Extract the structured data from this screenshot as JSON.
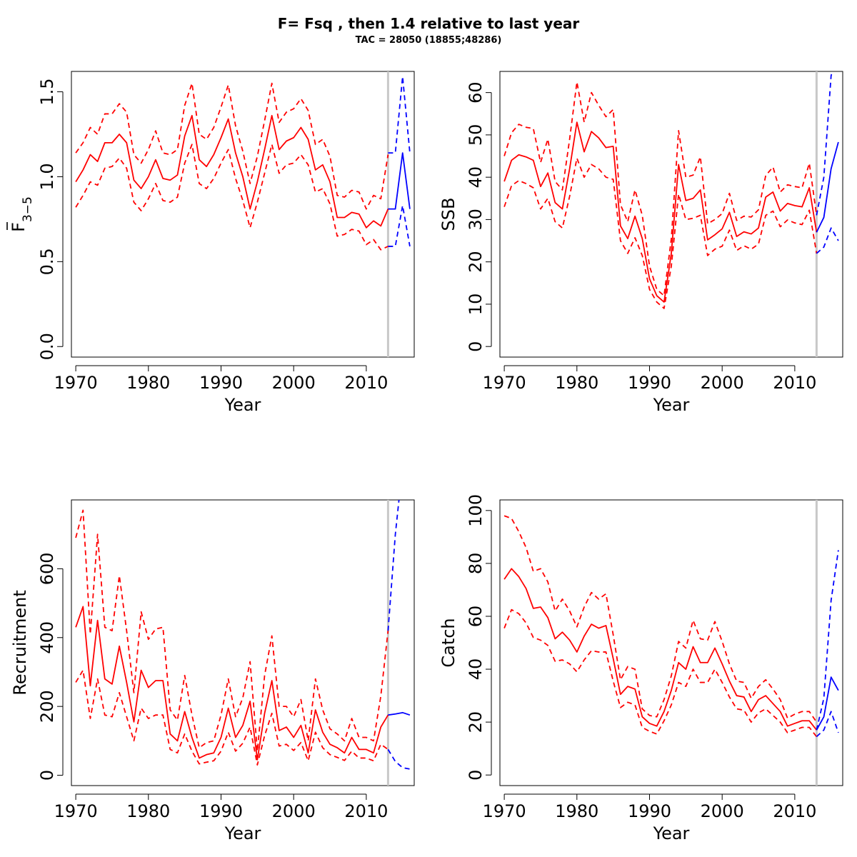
{
  "figure": {
    "title": "F= Fsq , then 1.4  relative to last year",
    "subtitle": "TAC = 28050 (18855;48286)",
    "colors": {
      "historic": "#ff0000",
      "projection": "#0000ff",
      "marker": "#c8c8c8"
    }
  },
  "chart_data": [
    {
      "type": "line",
      "name": "fbar",
      "title": "",
      "xlabel": "Year",
      "ylabel": "F",
      "ylabel_bar": "F",
      "ylabel_sub": "3−5",
      "xlim": [
        1969.4,
        2016.6
      ],
      "ylim": [
        -0.062,
        1.62
      ],
      "xticks": [
        1970,
        1980,
        1990,
        2000,
        2010
      ],
      "yticks": [
        0.0,
        0.5,
        1.0,
        1.5
      ],
      "ytick_labels": [
        "0.0",
        "0.5",
        "1.0",
        "1.5"
      ],
      "marker_year": 2013,
      "historic": {
        "x": [
          1970,
          1971,
          1972,
          1973,
          1974,
          1975,
          1976,
          1977,
          1978,
          1979,
          1980,
          1981,
          1982,
          1983,
          1984,
          1985,
          1986,
          1987,
          1988,
          1989,
          1990,
          1991,
          1992,
          1993,
          1994,
          1995,
          1996,
          1997,
          1998,
          1999,
          2000,
          2001,
          2002,
          2003,
          2004,
          2005,
          2006,
          2007,
          2008,
          2009,
          2010,
          2011,
          2012,
          2013
        ],
        "mid": [
          0.97,
          1.04,
          1.13,
          1.09,
          1.2,
          1.2,
          1.25,
          1.2,
          0.98,
          0.93,
          1.0,
          1.1,
          0.99,
          0.98,
          1.01,
          1.24,
          1.36,
          1.1,
          1.06,
          1.13,
          1.23,
          1.34,
          1.14,
          1.0,
          0.81,
          0.97,
          1.16,
          1.36,
          1.16,
          1.21,
          1.23,
          1.29,
          1.22,
          1.04,
          1.07,
          0.97,
          0.76,
          0.76,
          0.79,
          0.78,
          0.7,
          0.74,
          0.71,
          0.81
        ],
        "upper": [
          1.14,
          1.2,
          1.29,
          1.25,
          1.37,
          1.37,
          1.43,
          1.38,
          1.13,
          1.08,
          1.16,
          1.27,
          1.14,
          1.13,
          1.16,
          1.42,
          1.55,
          1.25,
          1.22,
          1.29,
          1.41,
          1.54,
          1.3,
          1.15,
          0.96,
          1.12,
          1.33,
          1.55,
          1.32,
          1.38,
          1.4,
          1.46,
          1.39,
          1.19,
          1.22,
          1.12,
          0.89,
          0.88,
          0.92,
          0.91,
          0.81,
          0.89,
          0.87,
          1.13
        ],
        "lower": [
          0.82,
          0.89,
          0.97,
          0.95,
          1.05,
          1.06,
          1.11,
          1.05,
          0.85,
          0.8,
          0.87,
          0.96,
          0.86,
          0.85,
          0.88,
          1.08,
          1.19,
          0.96,
          0.93,
          0.99,
          1.08,
          1.16,
          0.99,
          0.86,
          0.7,
          0.85,
          1.02,
          1.19,
          1.02,
          1.07,
          1.08,
          1.13,
          1.07,
          0.91,
          0.93,
          0.84,
          0.65,
          0.66,
          0.69,
          0.68,
          0.6,
          0.63,
          0.57,
          0.59
        ]
      },
      "projection": {
        "x": [
          2013,
          2014,
          2015,
          2016
        ],
        "mid": [
          0.81,
          0.81,
          1.14,
          0.81
        ],
        "upper": [
          1.14,
          1.14,
          1.59,
          1.14
        ],
        "lower": [
          0.59,
          0.59,
          0.83,
          0.59
        ]
      }
    },
    {
      "type": "line",
      "name": "ssb",
      "title": "",
      "xlabel": "Year",
      "ylabel": "SSB",
      "xlim": [
        1969.4,
        2016.6
      ],
      "ylim": [
        -2.5,
        65
      ],
      "xticks": [
        1970,
        1980,
        1990,
        2000,
        2010
      ],
      "yticks": [
        0,
        10,
        20,
        30,
        40,
        50,
        60
      ],
      "ytick_labels": [
        "0",
        "10",
        "20",
        "30",
        "40",
        "50",
        "60"
      ],
      "marker_year": 2013,
      "historic": {
        "x": [
          1970,
          1971,
          1972,
          1973,
          1974,
          1975,
          1976,
          1977,
          1978,
          1979,
          1980,
          1981,
          1982,
          1983,
          1984,
          1985,
          1986,
          1987,
          1988,
          1989,
          1990,
          1991,
          1992,
          1993,
          1994,
          1995,
          1996,
          1997,
          1998,
          1999,
          2000,
          2001,
          2002,
          2003,
          2004,
          2005,
          2006,
          2007,
          2008,
          2009,
          2010,
          2011,
          2012,
          2013
        ],
        "mid": [
          39,
          44,
          45.3,
          44.8,
          44,
          37.8,
          41,
          34,
          32.5,
          42,
          53,
          46,
          50.8,
          49.3,
          47,
          47.3,
          28.5,
          25.5,
          30.8,
          25.5,
          16,
          12,
          10.5,
          22,
          43,
          34.5,
          35,
          37,
          25.2,
          26.4,
          27.8,
          31.7,
          26,
          27.1,
          26.6,
          28,
          35.3,
          36.5,
          32,
          33.8,
          33.3,
          33,
          37.5,
          27
        ],
        "upper": [
          45,
          50.5,
          52.5,
          51.8,
          51.5,
          43.5,
          49,
          39,
          37,
          49,
          62.5,
          53,
          60,
          57,
          54.3,
          56,
          33.5,
          29.5,
          37,
          31,
          19,
          13.5,
          12,
          25.5,
          51,
          40,
          40.5,
          44.8,
          29,
          30,
          31.4,
          36.2,
          29.8,
          30.8,
          30.6,
          32.3,
          40.4,
          42.4,
          36.5,
          38.2,
          37.8,
          37.5,
          43.3,
          31
        ],
        "lower": [
          33,
          38,
          39.2,
          38.5,
          37.5,
          32.5,
          35,
          29.5,
          28,
          35.5,
          44.5,
          40,
          43,
          42,
          40,
          39.5,
          25,
          22,
          25.7,
          21.5,
          13.5,
          10.5,
          9,
          19,
          36,
          30,
          30.3,
          31,
          21.5,
          23,
          23.7,
          27.5,
          22.7,
          23.8,
          23,
          24.2,
          31,
          32,
          28.3,
          29.9,
          29.2,
          28.8,
          32.2,
          22
        ]
      },
      "projection": {
        "x": [
          2013,
          2014,
          2015,
          2016
        ],
        "mid": [
          27,
          30.5,
          42,
          48.3
        ],
        "upper": [
          31,
          40,
          64,
          70
        ],
        "lower": [
          22,
          23.5,
          28,
          25
        ]
      }
    },
    {
      "type": "line",
      "name": "recruitment",
      "title": "",
      "xlabel": "Year",
      "ylabel": "Recruitment",
      "xlim": [
        1969.4,
        2016.6
      ],
      "ylim": [
        -30,
        800
      ],
      "xticks": [
        1970,
        1980,
        1990,
        2000,
        2010
      ],
      "yticks": [
        0,
        200,
        400,
        600
      ],
      "ytick_labels": [
        "0",
        "200",
        "400",
        "600"
      ],
      "marker_year": 2013,
      "historic": {
        "x": [
          1970,
          1971,
          1972,
          1973,
          1974,
          1975,
          1976,
          1977,
          1978,
          1979,
          1980,
          1981,
          1982,
          1983,
          1984,
          1985,
          1986,
          1987,
          1988,
          1989,
          1990,
          1991,
          1992,
          1993,
          1994,
          1995,
          1996,
          1997,
          1998,
          1999,
          2000,
          2001,
          2002,
          2003,
          2004,
          2005,
          2006,
          2007,
          2008,
          2009,
          2010,
          2011,
          2012,
          2013
        ],
        "mid": [
          430,
          490,
          260,
          450,
          280,
          265,
          375,
          270,
          155,
          305,
          255,
          275,
          275,
          120,
          100,
          185,
          110,
          50,
          60,
          65,
          110,
          195,
          110,
          145,
          215,
          45,
          180,
          275,
          130,
          140,
          110,
          145,
          65,
          190,
          125,
          90,
          80,
          65,
          110,
          75,
          75,
          65,
          140,
          175
        ],
        "upper": [
          690,
          770,
          410,
          700,
          430,
          420,
          580,
          420,
          240,
          475,
          395,
          425,
          430,
          190,
          160,
          290,
          175,
          80,
          95,
          100,
          175,
          280,
          170,
          225,
          330,
          70,
          290,
          405,
          200,
          200,
          170,
          220,
          100,
          280,
          190,
          135,
          120,
          100,
          165,
          110,
          110,
          100,
          230,
          420
        ],
        "lower": [
          270,
          305,
          165,
          280,
          175,
          170,
          240,
          170,
          100,
          195,
          165,
          175,
          175,
          75,
          65,
          120,
          70,
          33,
          38,
          42,
          70,
          125,
          70,
          93,
          140,
          30,
          115,
          180,
          85,
          90,
          72,
          95,
          42,
          125,
          80,
          60,
          52,
          43,
          70,
          50,
          50,
          42,
          90,
          75
        ]
      },
      "projection": {
        "x": [
          2013,
          2014,
          2015,
          2016
        ],
        "mid": [
          175,
          178,
          182,
          175
        ],
        "upper": [
          420,
          700,
          900,
          950
        ],
        "lower": [
          75,
          40,
          22,
          18
        ]
      }
    },
    {
      "type": "line",
      "name": "catch",
      "title": "",
      "xlabel": "Year",
      "ylabel": "Catch",
      "xlim": [
        1969.4,
        2016.6
      ],
      "ylim": [
        -4,
        104
      ],
      "xticks": [
        1970,
        1980,
        1990,
        2000,
        2010
      ],
      "yticks": [
        0,
        20,
        40,
        60,
        80,
        100
      ],
      "ytick_labels": [
        "0",
        "20",
        "40",
        "60",
        "80",
        "100"
      ],
      "marker_year": 2013,
      "historic": {
        "x": [
          1970,
          1971,
          1972,
          1973,
          1974,
          1975,
          1976,
          1977,
          1978,
          1979,
          1980,
          1981,
          1982,
          1983,
          1984,
          1985,
          1986,
          1987,
          1988,
          1989,
          1990,
          1991,
          1992,
          1993,
          1994,
          1995,
          1996,
          1997,
          1998,
          1999,
          2000,
          2001,
          2002,
          2003,
          2004,
          2005,
          2006,
          2007,
          2008,
          2009,
          2010,
          2011,
          2012,
          2013
        ],
        "mid": [
          74,
          78,
          75,
          70.5,
          63,
          63.5,
          59.5,
          51.5,
          54,
          51,
          46.5,
          52.5,
          57,
          55.5,
          56.5,
          44,
          30.5,
          33.5,
          32.5,
          22,
          19.5,
          18.5,
          24,
          32,
          42.5,
          40,
          48.5,
          42.5,
          42.5,
          48,
          42,
          35.5,
          30,
          29.5,
          24,
          28.5,
          30,
          27,
          24,
          18.5,
          19.5,
          20.5,
          20.5,
          17
        ],
        "upper": [
          98,
          97,
          92,
          86,
          77,
          78,
          73,
          62,
          66.5,
          62,
          56,
          63.5,
          69,
          66.5,
          68.5,
          53,
          36,
          41,
          40,
          25,
          22.5,
          22,
          28.5,
          37.5,
          50.5,
          48,
          58.5,
          51.5,
          51,
          58,
          50.5,
          42,
          35.5,
          35,
          29,
          33.5,
          36,
          32.5,
          28.5,
          21.5,
          23,
          24,
          24,
          20
        ],
        "lower": [
          55.5,
          62.5,
          61,
          57.5,
          52,
          51,
          49,
          43,
          43.5,
          42,
          39,
          43.5,
          47,
          46.5,
          46.5,
          35.5,
          25.5,
          27.5,
          26.5,
          18,
          16.5,
          15.5,
          20.5,
          26.5,
          35,
          33.5,
          40,
          35,
          35,
          40,
          35,
          29.5,
          25,
          24.5,
          20,
          23.5,
          25,
          22.5,
          20,
          16,
          17,
          18,
          18,
          14.5
        ]
      },
      "projection": {
        "x": [
          2013,
          2014,
          2015,
          2016
        ],
        "mid": [
          17,
          22,
          37,
          32
        ],
        "upper": [
          17,
          29,
          66,
          85
        ],
        "lower": [
          14.5,
          17,
          24,
          16
        ]
      }
    }
  ]
}
